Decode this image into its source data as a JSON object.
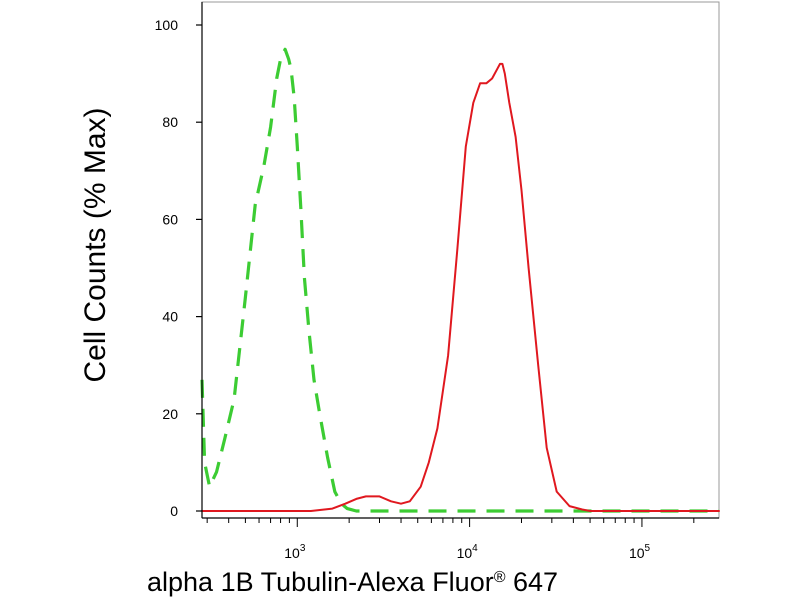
{
  "chart_data": {
    "type": "line",
    "title": "",
    "xlabel": "alpha 1B Tubulin-Alexa Fluor",
    "xlabel_sup": "®",
    "xlabel_suffix": " 647",
    "ylabel": "Cell Counts (% Max)",
    "x_scale": "log",
    "xlim": [
      280,
      280000
    ],
    "ylim": [
      0,
      100
    ],
    "yticks": [
      0,
      20,
      40,
      60,
      80,
      100
    ],
    "yticks_labels": [
      "0",
      "20",
      "40",
      "60",
      "80",
      "100"
    ],
    "xticks": [
      {
        "value": 1000,
        "base": "10",
        "exp": "3"
      },
      {
        "value": 10000,
        "base": "10",
        "exp": "4"
      },
      {
        "value": 100000,
        "base": "10",
        "exp": "5"
      }
    ],
    "grid": false,
    "series": [
      {
        "style": "dashed",
        "color": "#3ccc33",
        "x": [
          280,
          290,
          310,
          340,
          380,
          430,
          500,
          570,
          640,
          700,
          760,
          800,
          850,
          890,
          920,
          960,
          1000,
          1050,
          1100,
          1170,
          1250,
          1350,
          1500,
          1650,
          1800,
          1950,
          2200,
          3000,
          5000,
          10000,
          30000,
          100000,
          280000
        ],
        "y": [
          27,
          10,
          5,
          8,
          15,
          23,
          44,
          63,
          71,
          79,
          89,
          93,
          95,
          93,
          91,
          85,
          75,
          62,
          48,
          37,
          27,
          20,
          11,
          4,
          1.5,
          0.5,
          0,
          0,
          0,
          0,
          0,
          0,
          0
        ]
      },
      {
        "style": "solid",
        "color": "#e0181f",
        "x": [
          280,
          1200,
          1600,
          1900,
          2200,
          2500,
          3000,
          3500,
          4000,
          4500,
          5200,
          5800,
          6500,
          7500,
          8500,
          9500,
          10500,
          11500,
          12500,
          13500,
          14500,
          15000,
          15500,
          16000,
          17000,
          18500,
          20000,
          22000,
          25000,
          28000,
          32000,
          38000,
          45000,
          50000,
          60000,
          100000,
          280000
        ],
        "y": [
          0,
          0,
          0.5,
          1.5,
          2.5,
          3,
          3,
          2,
          1.5,
          2,
          5,
          10,
          17,
          32,
          54,
          75,
          84,
          88,
          88,
          89,
          91,
          92,
          92,
          90,
          84,
          77,
          66,
          50,
          30,
          13,
          4,
          1,
          0.3,
          0,
          0,
          0,
          0
        ]
      }
    ]
  }
}
